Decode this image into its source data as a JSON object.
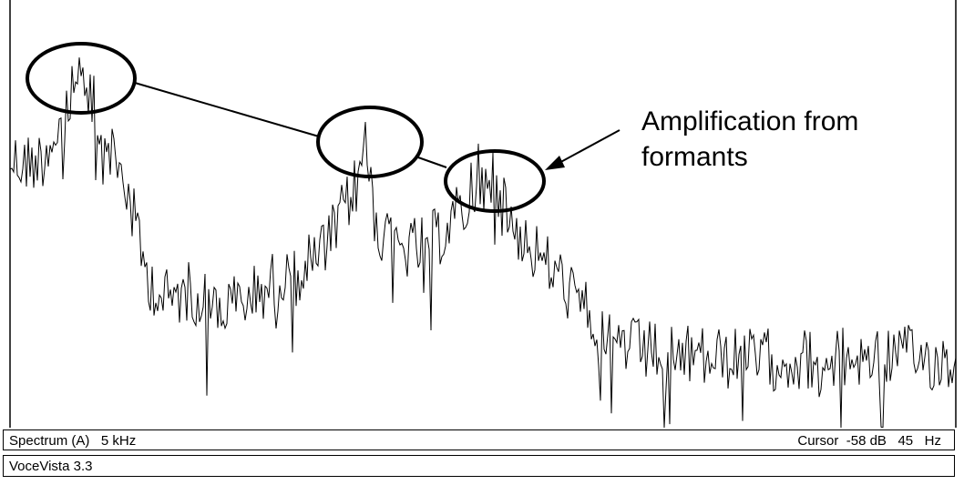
{
  "annotation": {
    "line1": "Amplification from",
    "line2": "formants"
  },
  "status": {
    "mode": "Spectrum (A)",
    "range": "5 kHz",
    "cursor_label": "Cursor",
    "cursor_db": "-58 dB",
    "cursor_freq": "45",
    "cursor_unit": "Hz"
  },
  "app": {
    "title": "VoceVista 3.3"
  },
  "colors": {
    "trace": "#000000",
    "background": "#ffffff",
    "frame": "#000000"
  }
}
